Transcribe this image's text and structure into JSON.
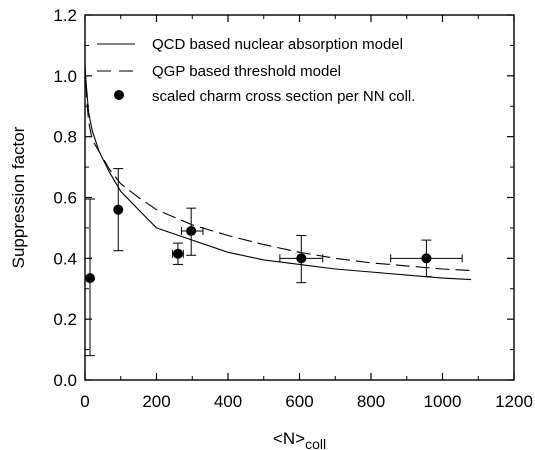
{
  "chart_data": {
    "type": "scatter",
    "xlabel": "<N>",
    "xlabel_subscript": "coll",
    "ylabel": "Suppression factor",
    "xlim": [
      0,
      1200
    ],
    "ylim": [
      0.0,
      1.2
    ],
    "x_ticks": [
      0,
      200,
      400,
      600,
      800,
      1000,
      1200
    ],
    "y_ticks": [
      0.0,
      0.2,
      0.4,
      0.6,
      0.8,
      1.0,
      1.2
    ],
    "x_tick_labels": [
      "0",
      "200",
      "400",
      "600",
      "800",
      "1000",
      "1200"
    ],
    "y_tick_labels": [
      "0.0",
      "0.2",
      "0.4",
      "0.6",
      "0.8",
      "1.0",
      "1.2"
    ],
    "grid": false,
    "legend_position": "top",
    "series": [
      {
        "name": "QCD based nuclear absorption model",
        "kind": "line",
        "style": "solid",
        "x": [
          0,
          5,
          10,
          20,
          40,
          70,
          100,
          150,
          200,
          300,
          400,
          500,
          600,
          700,
          800,
          900,
          1000,
          1080
        ],
        "y": [
          1.02,
          0.95,
          0.88,
          0.82,
          0.75,
          0.68,
          0.62,
          0.56,
          0.5,
          0.46,
          0.42,
          0.395,
          0.38,
          0.365,
          0.355,
          0.345,
          0.335,
          0.33
        ]
      },
      {
        "name": "QGP based threshold model",
        "kind": "line",
        "style": "dashed",
        "x": [
          0,
          5,
          10,
          20,
          40,
          70,
          100,
          150,
          200,
          300,
          400,
          500,
          600,
          700,
          800,
          900,
          1000,
          1080
        ],
        "y": [
          1.04,
          0.92,
          0.85,
          0.79,
          0.75,
          0.69,
          0.645,
          0.6,
          0.56,
          0.51,
          0.475,
          0.445,
          0.42,
          0.4,
          0.385,
          0.375,
          0.365,
          0.36
        ]
      },
      {
        "name": "scaled charm cross section per NN coll.",
        "kind": "points",
        "points": [
          {
            "x": 14,
            "y": 0.335,
            "y_low": 0.08,
            "y_high": 0.595,
            "x_low": null,
            "x_high": null
          },
          {
            "x": 93,
            "y": 0.56,
            "y_low": 0.425,
            "y_high": 0.695,
            "x_low": 86,
            "x_high": 100
          },
          {
            "x": 260,
            "y": 0.415,
            "y_low": 0.38,
            "y_high": 0.45,
            "x_low": 245,
            "x_high": 275
          },
          {
            "x": 297,
            "y": 0.49,
            "y_low": 0.41,
            "y_high": 0.565,
            "x_low": 270,
            "x_high": 330
          },
          {
            "x": 605,
            "y": 0.4,
            "y_low": 0.32,
            "y_high": 0.475,
            "x_low": 545,
            "x_high": 665
          },
          {
            "x": 955,
            "y": 0.4,
            "y_low": 0.34,
            "y_high": 0.46,
            "x_low": 855,
            "x_high": 1055
          }
        ]
      }
    ]
  }
}
